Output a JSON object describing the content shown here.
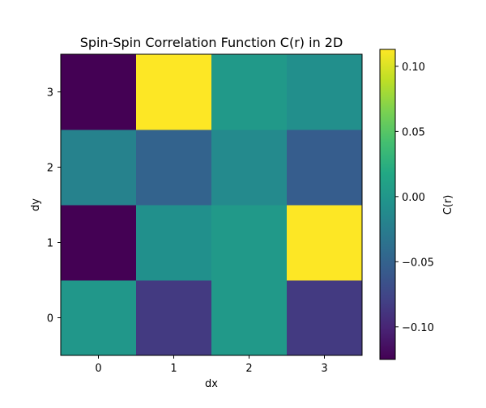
{
  "chart_data": {
    "type": "heatmap",
    "title": "Spin-Spin Correlation Function C(r) in 2D",
    "xlabel": "dx",
    "ylabel": "dy",
    "x_ticks": [
      "0",
      "1",
      "2",
      "3"
    ],
    "y_ticks": [
      "0",
      "1",
      "2",
      "3"
    ],
    "values": [
      [
        0.0,
        -0.085,
        0.002,
        -0.085
      ],
      [
        -0.125,
        -0.007,
        0.002,
        0.113
      ],
      [
        -0.02,
        -0.05,
        -0.013,
        -0.055
      ],
      [
        -0.125,
        0.113,
        0.002,
        -0.008
      ]
    ],
    "vmin": -0.125,
    "vmax": 0.113,
    "colormap": "viridis",
    "colorbar": {
      "label": "C(r)",
      "tick_values": [
        -0.1,
        -0.05,
        0.0,
        0.05,
        0.1
      ],
      "tick_labels": [
        "−0.10",
        "−0.05",
        "0.00",
        "0.05",
        "0.10"
      ]
    },
    "grid": false
  }
}
